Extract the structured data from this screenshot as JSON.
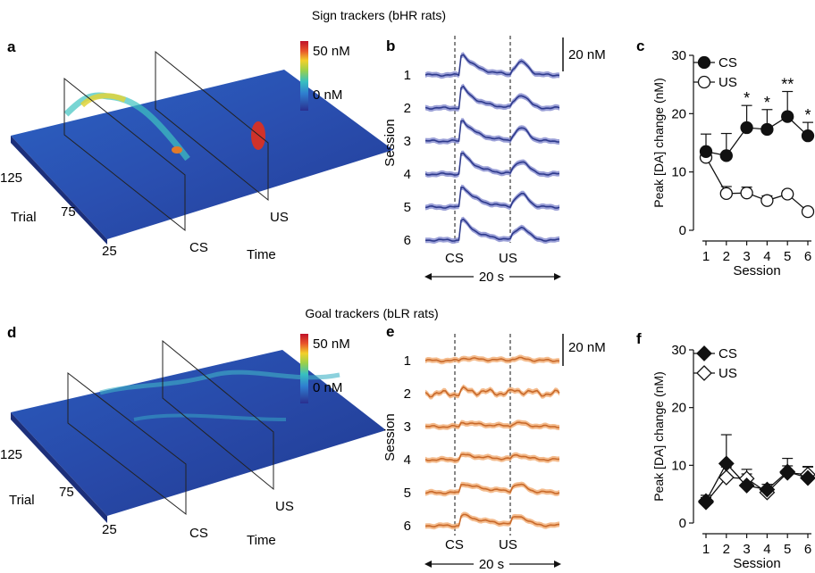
{
  "header_top": "Sign trackers (bHR rats)",
  "header_bottom": "Goal trackers (bLR rats)",
  "colorbar": {
    "max_label": "50 nM",
    "min_label": "0 nM",
    "colors": [
      "#2a2f8f",
      "#2f7fd0",
      "#38c0c0",
      "#9cd04a",
      "#f2d02a",
      "#e8542a",
      "#c0122a"
    ]
  },
  "panels": {
    "a": {
      "letter": "a",
      "trial_label": "Trial",
      "time_label": "Time",
      "cs_label": "CS",
      "us_label": "US",
      "trial_ticks": [
        "125",
        "75",
        "25"
      ]
    },
    "b": {
      "letter": "b",
      "ylabel": "Session",
      "scale_label": "20 nM",
      "cs_label": "CS",
      "us_label": "US",
      "duration_label": "20 s",
      "sessions": [
        "1",
        "2",
        "3",
        "4",
        "5",
        "6"
      ],
      "line_color": "#2e3a8c",
      "band_color": "#8a8fd0"
    },
    "d": {
      "letter": "d",
      "trial_label": "Trial",
      "time_label": "Time",
      "cs_label": "CS",
      "us_label": "US",
      "trial_ticks": [
        "125",
        "75",
        "25"
      ]
    },
    "e": {
      "letter": "e",
      "ylabel": "Session",
      "scale_label": "20 nM",
      "cs_label": "CS",
      "us_label": "US",
      "duration_label": "20 s",
      "sessions": [
        "1",
        "2",
        "3",
        "4",
        "5",
        "6"
      ],
      "line_color": "#c8692a",
      "band_color": "#f2b07a"
    }
  },
  "chart_data": [
    {
      "panel": "c",
      "type": "line",
      "letter": "c",
      "xlabel": "Session",
      "ylabel": "Peak [DA] change (nM)",
      "x": [
        1,
        2,
        3,
        4,
        5,
        6
      ],
      "ylim": [
        0,
        30
      ],
      "yticks": [
        0,
        10,
        20,
        30
      ],
      "marker": "circle",
      "series": [
        {
          "name": "CS",
          "values": [
            13.5,
            12.8,
            17.6,
            17.3,
            19.5,
            16.2
          ],
          "errors": [
            3.0,
            3.8,
            3.8,
            3.4,
            4.3,
            2.3
          ],
          "filled": true
        },
        {
          "name": "US",
          "values": [
            12.5,
            6.3,
            6.4,
            5.1,
            6.2,
            3.2
          ],
          "errors": [
            1.5,
            1.2,
            1.0,
            0.8,
            0.6,
            0.4
          ],
          "filled": false
        }
      ],
      "annotations": [
        {
          "x": 3,
          "text": "*"
        },
        {
          "x": 4,
          "text": "*"
        },
        {
          "x": 5,
          "text": "**"
        },
        {
          "x": 6,
          "text": "*"
        }
      ]
    },
    {
      "panel": "f",
      "type": "line",
      "letter": "f",
      "xlabel": "Session",
      "ylabel": "Peak [DA] change (nM)",
      "x": [
        1,
        2,
        3,
        4,
        5,
        6
      ],
      "ylim": [
        0,
        30
      ],
      "yticks": [
        0,
        10,
        20,
        30
      ],
      "marker": "diamond",
      "series": [
        {
          "name": "CS",
          "values": [
            3.8,
            10.3,
            6.5,
            5.8,
            8.9,
            7.8
          ],
          "errors": [
            1.0,
            5.0,
            2.0,
            0.9,
            2.3,
            2.0
          ],
          "filled": true
        },
        {
          "name": "US",
          "values": [
            3.6,
            7.9,
            7.7,
            5.3,
            8.7,
            8.4
          ],
          "errors": [
            0.8,
            1.8,
            1.6,
            0.7,
            1.2,
            1.3
          ],
          "filled": false
        }
      ],
      "annotations": []
    }
  ]
}
